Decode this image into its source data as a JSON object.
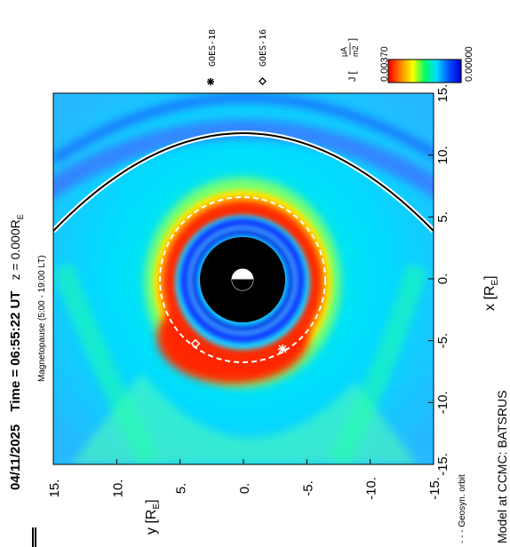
{
  "chart_data": {
    "type": "heatmap",
    "title_parts": {
      "date": "04/11/2025",
      "time_label": "Time = 06:55:22 UT",
      "z_label": "z = 0.000R",
      "z_sub": "E"
    },
    "subtitle": "Magnetopause (5:00 - 19:00 LT)",
    "xlabel": "x [R",
    "xlabel_sub": "E",
    "xlabel_end": "]",
    "ylabel": "y [R",
    "ylabel_sub": "E",
    "ylabel_end": "]",
    "xlim": [
      -15,
      15
    ],
    "ylim": [
      -15,
      15
    ],
    "x_ticks": [
      "-15.",
      "-10.",
      "-5.",
      "0.",
      "5.",
      "10.",
      "15."
    ],
    "y_ticks": [
      "15.",
      "10.",
      "5.",
      "0.",
      "-5.",
      "-10.",
      "-15."
    ],
    "colorbar": {
      "label": "J [",
      "unit_num": "μA",
      "unit_den": "m2",
      "label_end": "]",
      "max_label": "0.00370",
      "min_label": "0.00000",
      "range": [
        0.0,
        0.0037
      ],
      "colormap": [
        "#ff0000",
        "#ff8800",
        "#ffff00",
        "#00ff66",
        "#00ddff",
        "#0055ff",
        "#0000dd"
      ]
    },
    "legend": [
      {
        "symbol": "asterisk",
        "label": "GOES-18"
      },
      {
        "symbol": "diamond",
        "label": "GOES-16"
      }
    ],
    "magnetopause_label": "Magnetopause (5:00 - 19:00 LT)",
    "geosyn_label": "- - - Geosyn. orbit",
    "footer": "Model at CCMC: BATSRUS",
    "magnetopause_standoff_re": 11.5,
    "geosynchronous_radius_re": 6.6,
    "inner_boundary_re": 3.5,
    "satellites": [
      {
        "name": "GOES-18",
        "x": -5.8,
        "y": -3.3
      },
      {
        "name": "GOES-16",
        "x": -5.4,
        "y": 3.9
      }
    ]
  },
  "colors": {
    "background_field": "#00d8ff",
    "ring_red": "#ff2a00",
    "ring_orange": "#ff9a00",
    "ring_yellow": "#ffee00",
    "ring_blue": "#0a3cff",
    "inner_black": "#000000"
  }
}
